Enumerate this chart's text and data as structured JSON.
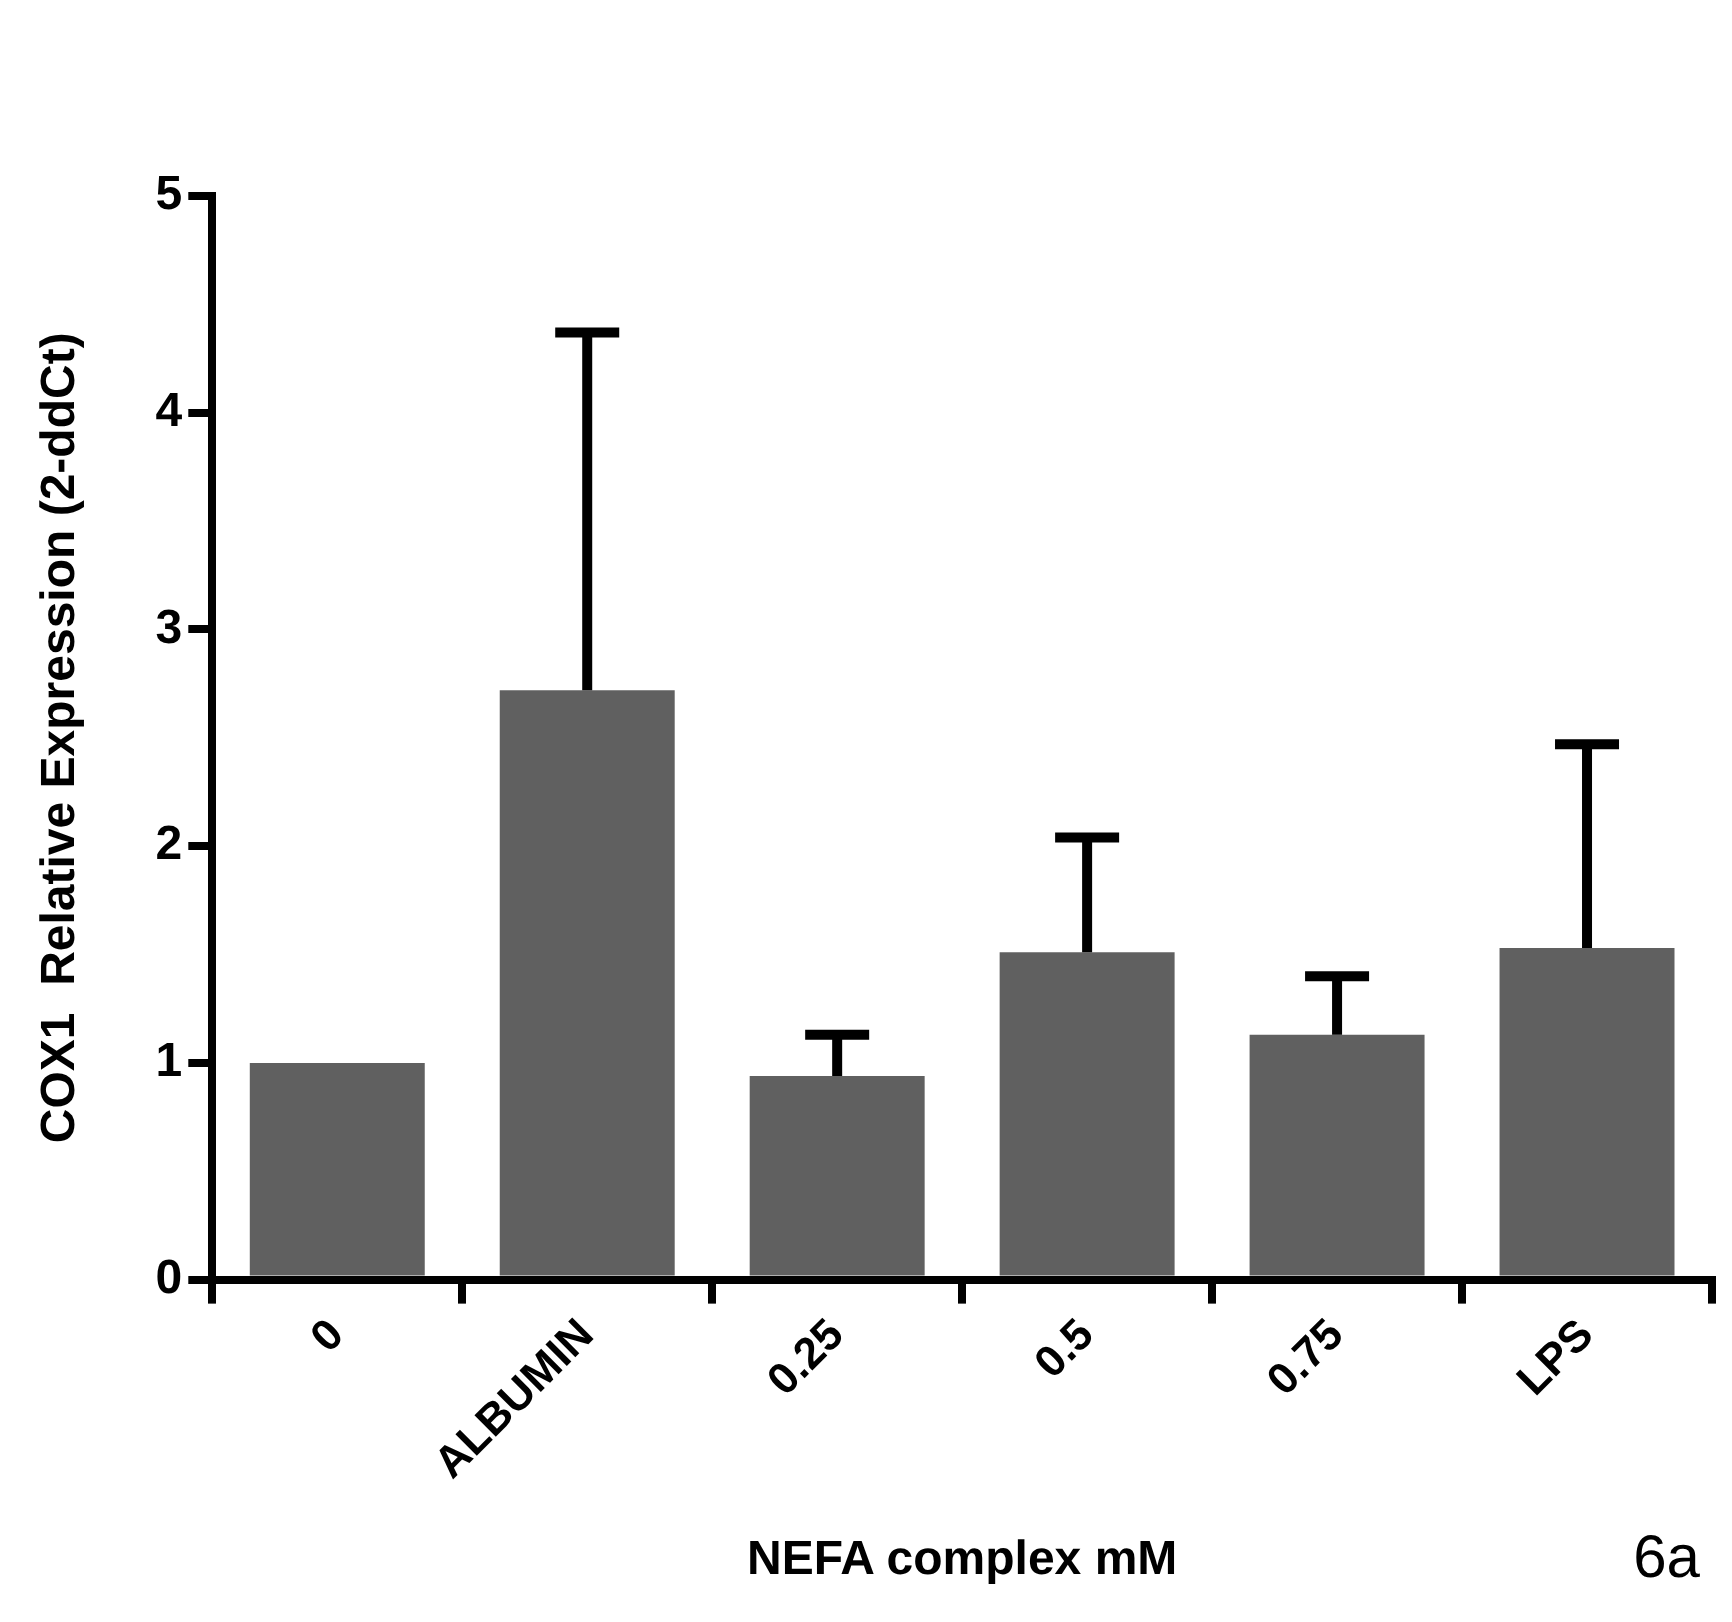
{
  "chart_data": {
    "type": "bar",
    "xlabel": "NEFA complex mM",
    "ylabel": "COX1  Relative Expression (2-ddCt)",
    "categories": [
      "0",
      "ALBUMIN",
      "0.25",
      "0.5",
      "0.75",
      "LPS"
    ],
    "values": [
      1.0,
      2.72,
      0.94,
      1.51,
      1.13,
      1.53
    ],
    "errors": [
      null,
      [
        2.72,
        4.37
      ],
      [
        0.94,
        1.13
      ],
      [
        1.51,
        2.04
      ],
      [
        1.13,
        1.4
      ],
      [
        1.53,
        2.47
      ]
    ],
    "color": "#606060",
    "ylim": [
      0,
      5
    ],
    "yticks": [
      0,
      1,
      2,
      3,
      4,
      5
    ],
    "grid": false,
    "legend": false,
    "annotations": [
      "6a"
    ]
  }
}
